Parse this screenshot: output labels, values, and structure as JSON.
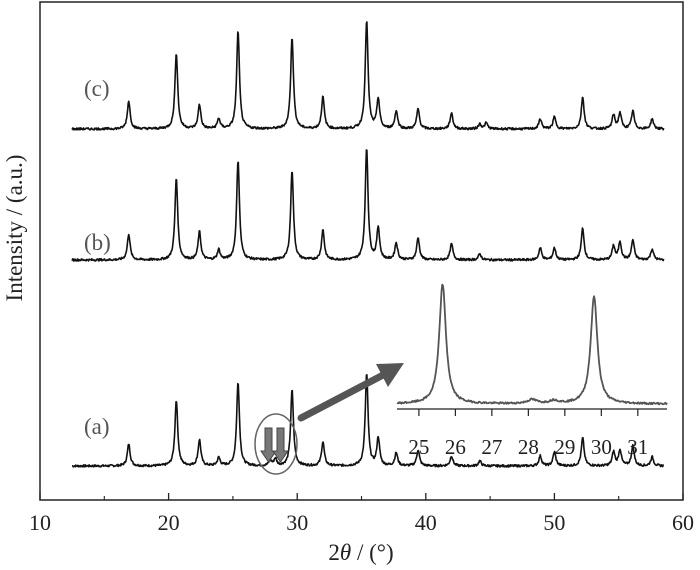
{
  "chart_data": {
    "type": "line",
    "title": "",
    "xlabel_main": "2",
    "xlabel_theta": "θ",
    "xlabel_unit": " / (°)",
    "ylabel": "Intensity / (a.u.)",
    "xlim": [
      10,
      60
    ],
    "x_ticks": [
      10,
      20,
      30,
      40,
      50,
      60
    ],
    "y_ticks_shown": false,
    "grid": false,
    "legend": "none",
    "colors": {
      "trace": "#111111",
      "inset_trace": "#555555",
      "arrow": "#555555",
      "marker": "#777777",
      "circle": "#666666"
    },
    "series": [
      {
        "name": "(a)",
        "baseline": 0,
        "peaks": [
          {
            "x": 16.9,
            "h": 22
          },
          {
            "x": 20.6,
            "h": 66
          },
          {
            "x": 22.4,
            "h": 26
          },
          {
            "x": 23.9,
            "h": 8
          },
          {
            "x": 25.4,
            "h": 84
          },
          {
            "x": 27.9,
            "h": 5
          },
          {
            "x": 28.3,
            "h": 7
          },
          {
            "x": 29.6,
            "h": 76
          },
          {
            "x": 32.0,
            "h": 24
          },
          {
            "x": 35.4,
            "h": 92
          },
          {
            "x": 36.3,
            "h": 28
          },
          {
            "x": 37.7,
            "h": 13
          },
          {
            "x": 39.4,
            "h": 16
          },
          {
            "x": 42.0,
            "h": 10
          },
          {
            "x": 44.2,
            "h": 5
          },
          {
            "x": 48.9,
            "h": 10
          },
          {
            "x": 50.0,
            "h": 14
          },
          {
            "x": 52.2,
            "h": 28
          },
          {
            "x": 54.6,
            "h": 14
          },
          {
            "x": 55.1,
            "h": 16
          },
          {
            "x": 56.1,
            "h": 20
          },
          {
            "x": 57.6,
            "h": 9
          }
        ]
      },
      {
        "name": "(b)",
        "baseline": 1,
        "peaks": [
          {
            "x": 16.9,
            "h": 26
          },
          {
            "x": 20.6,
            "h": 82
          },
          {
            "x": 22.4,
            "h": 28
          },
          {
            "x": 23.9,
            "h": 10
          },
          {
            "x": 25.4,
            "h": 100
          },
          {
            "x": 29.6,
            "h": 90
          },
          {
            "x": 32.0,
            "h": 30
          },
          {
            "x": 35.4,
            "h": 112
          },
          {
            "x": 36.3,
            "h": 32
          },
          {
            "x": 37.7,
            "h": 17
          },
          {
            "x": 39.4,
            "h": 22
          },
          {
            "x": 42.0,
            "h": 16
          },
          {
            "x": 44.2,
            "h": 6
          },
          {
            "x": 48.9,
            "h": 12
          },
          {
            "x": 50.0,
            "h": 12
          },
          {
            "x": 52.2,
            "h": 32
          },
          {
            "x": 54.6,
            "h": 14
          },
          {
            "x": 55.1,
            "h": 18
          },
          {
            "x": 56.1,
            "h": 20
          },
          {
            "x": 57.6,
            "h": 11
          }
        ]
      },
      {
        "name": "(c)",
        "baseline": 2,
        "peaks": [
          {
            "x": 16.9,
            "h": 28
          },
          {
            "x": 20.6,
            "h": 76
          },
          {
            "x": 22.4,
            "h": 24
          },
          {
            "x": 23.9,
            "h": 10
          },
          {
            "x": 25.4,
            "h": 98
          },
          {
            "x": 29.6,
            "h": 92
          },
          {
            "x": 32.0,
            "h": 32
          },
          {
            "x": 35.4,
            "h": 108
          },
          {
            "x": 36.3,
            "h": 30
          },
          {
            "x": 37.7,
            "h": 18
          },
          {
            "x": 39.4,
            "h": 20
          },
          {
            "x": 42.0,
            "h": 16
          },
          {
            "x": 44.2,
            "h": 5
          },
          {
            "x": 44.7,
            "h": 6
          },
          {
            "x": 48.9,
            "h": 10
          },
          {
            "x": 50.0,
            "h": 12
          },
          {
            "x": 52.2,
            "h": 32
          },
          {
            "x": 54.6,
            "h": 14
          },
          {
            "x": 55.1,
            "h": 16
          },
          {
            "x": 56.1,
            "h": 18
          },
          {
            "x": 57.6,
            "h": 10
          }
        ]
      }
    ],
    "inset": {
      "x_ticks": [
        25,
        26,
        27,
        28,
        29,
        30,
        31
      ],
      "xlim": [
        24.4,
        31.8
      ],
      "peaks": [
        {
          "x": 25.65,
          "h": 120
        },
        {
          "x": 28.1,
          "h": 4
        },
        {
          "x": 28.7,
          "h": 3
        },
        {
          "x": 29.8,
          "h": 108
        }
      ]
    }
  }
}
